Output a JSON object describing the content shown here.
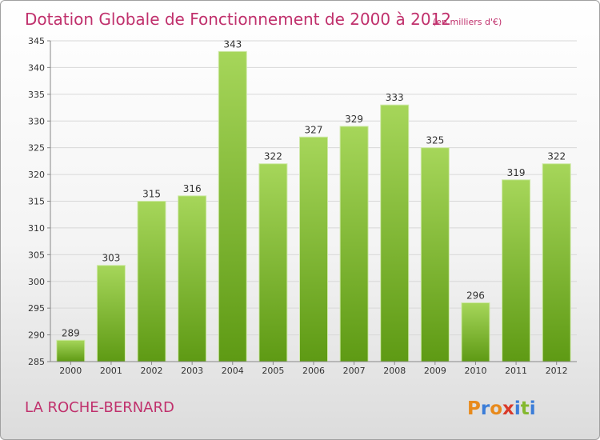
{
  "title": "Dotation Globale de Fonctionnement de 2000 à 2012",
  "subtitle": "(en milliers d'€)",
  "commune": "LA ROCHE-BERNARD",
  "logo": {
    "text": "Proxiti",
    "letter_colors": [
      "#e88a1c",
      "#3b7dd8",
      "#e88a1c",
      "#d93a2a",
      "#3b7dd8",
      "#84b82e",
      "#3b7dd8"
    ]
  },
  "colors": {
    "title": "#c0306c",
    "bar_light": "#a6d65a",
    "bar_dark": "#5e9a14",
    "grid": "#d8d8d8"
  },
  "chart_data": {
    "type": "bar",
    "categories": [
      "2000",
      "2001",
      "2002",
      "2003",
      "2004",
      "2005",
      "2006",
      "2007",
      "2008",
      "2009",
      "2010",
      "2011",
      "2012"
    ],
    "values": [
      289,
      303,
      315,
      316,
      343,
      322,
      327,
      329,
      333,
      325,
      296,
      319,
      322
    ],
    "ylim": [
      285,
      345
    ],
    "yticks": [
      285,
      290,
      295,
      300,
      305,
      310,
      315,
      320,
      325,
      330,
      335,
      340,
      345
    ],
    "grid": true,
    "xlabel": "",
    "ylabel": ""
  }
}
